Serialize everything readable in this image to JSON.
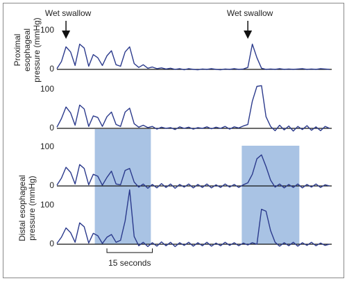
{
  "chart_data": {
    "type": "line",
    "x": [
      0,
      1.5,
      3,
      4.5,
      6,
      7.5,
      9,
      10.5,
      12,
      13.5,
      15,
      16.5,
      18,
      19.5,
      21,
      22.5,
      24,
      25.5,
      27,
      28.5,
      30,
      31.5,
      33,
      34.5,
      36,
      37.5,
      39,
      40.5,
      42,
      43.5,
      45,
      46.5,
      48,
      49.5,
      51,
      52.5,
      54,
      55.5,
      57,
      58.5,
      60,
      61.5,
      63,
      64.5,
      66,
      67.5,
      69,
      70.5,
      72,
      73.5,
      75,
      76.5,
      78,
      79.5,
      81,
      82.5,
      84,
      85.5,
      87,
      88.5,
      90
    ],
    "xlim": [
      0,
      90
    ],
    "ylim": [
      0,
      100
    ],
    "yticks": [
      0,
      100
    ],
    "ylabels": [
      [
        "Proximal",
        "esophageal",
        "pressure (mmHg)"
      ],
      [
        "Distal esophageal",
        "pressure (mmHg)"
      ]
    ],
    "annotations": [
      {
        "text": "Wet swallow",
        "x": 3
      },
      {
        "text": "Wet swallow",
        "x": 63
      }
    ],
    "highlights": [
      [
        12.5,
        31
      ],
      [
        61,
        80
      ]
    ],
    "highlight_color": "#a9c3e4",
    "scalebar": {
      "label": "15 seconds",
      "start": 16.5,
      "length": 15
    },
    "series": [
      {
        "color": "#2b3a8c",
        "values": [
          2,
          20,
          58,
          45,
          10,
          65,
          55,
          8,
          38,
          30,
          10,
          35,
          48,
          12,
          8,
          45,
          58,
          15,
          5,
          12,
          3,
          6,
          2,
          4,
          1,
          3,
          0,
          2,
          -1,
          2,
          0,
          -1,
          1,
          0,
          2,
          0,
          -1,
          1,
          0,
          2,
          0,
          1,
          5,
          65,
          30,
          3,
          0,
          1,
          0,
          2,
          0,
          1,
          0,
          1,
          2,
          0,
          1,
          0,
          2,
          1,
          0
        ]
      },
      {
        "color": "#2b3a8c",
        "values": [
          3,
          25,
          55,
          40,
          8,
          60,
          50,
          5,
          32,
          28,
          5,
          30,
          42,
          10,
          5,
          42,
          52,
          12,
          3,
          8,
          2,
          5,
          -2,
          3,
          0,
          2,
          -3,
          4,
          0,
          3,
          -2,
          2,
          0,
          4,
          -1,
          3,
          0,
          5,
          -2,
          4,
          1,
          6,
          10,
          70,
          108,
          110,
          30,
          5,
          -6,
          8,
          -4,
          6,
          -7,
          5,
          -3,
          7,
          -5,
          4,
          -6,
          5,
          0
        ]
      },
      {
        "color": "#2b3a8c",
        "values": [
          2,
          20,
          48,
          35,
          5,
          55,
          45,
          3,
          30,
          25,
          2,
          22,
          38,
          5,
          3,
          40,
          45,
          10,
          -3,
          5,
          -6,
          4,
          -5,
          6,
          -4,
          5,
          -6,
          4,
          -3,
          5,
          -5,
          4,
          -4,
          5,
          -5,
          3,
          -4,
          5,
          -3,
          4,
          -4,
          3,
          8,
          30,
          70,
          80,
          50,
          15,
          -3,
          5,
          -5,
          4,
          -4,
          5,
          -5,
          4,
          -3,
          5,
          -4,
          3,
          0
        ]
      },
      {
        "color": "#2b3a8c",
        "values": [
          2,
          18,
          42,
          30,
          5,
          55,
          45,
          3,
          28,
          22,
          2,
          18,
          25,
          5,
          10,
          60,
          140,
          20,
          -4,
          5,
          -6,
          4,
          -5,
          6,
          -4,
          5,
          -6,
          4,
          -3,
          5,
          -5,
          4,
          -4,
          5,
          -5,
          3,
          -4,
          5,
          -3,
          4,
          -4,
          3,
          -2,
          4,
          0,
          90,
          85,
          35,
          5,
          -5,
          4,
          -4,
          5,
          -5,
          4,
          -3,
          5,
          -4,
          3,
          -3,
          0
        ]
      }
    ]
  }
}
